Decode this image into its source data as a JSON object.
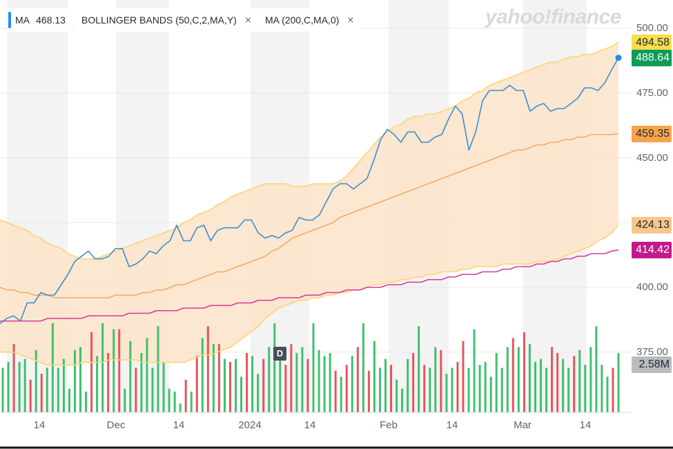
{
  "brand": "yahoo!finance",
  "indicators": [
    {
      "label": "MA",
      "value": "468.13",
      "has_close": false
    },
    {
      "label": "BOLLINGER BANDS (50,C,2,MA,Y)",
      "value": "",
      "has_close": true
    },
    {
      "label": "MA (200,C,MA,0)",
      "value": "",
      "has_close": true
    }
  ],
  "close_icon": "×",
  "chart_data": {
    "type": "line",
    "title": "",
    "y_ticks": [
      "500.00",
      "475.00",
      "450.00",
      "400.00",
      "375.00"
    ],
    "y_tick_values": [
      500,
      475,
      450,
      400,
      375
    ],
    "ylim": [
      363,
      510
    ],
    "x_ticks": [
      "14",
      "Dec",
      "14",
      "2024",
      "14",
      "Feb",
      "14",
      "Mar",
      "14"
    ],
    "x_tick_index": [
      9,
      18,
      27,
      35,
      44,
      56,
      65,
      76,
      85
    ],
    "grid": true,
    "price_series": [
      386,
      388,
      389,
      387,
      394,
      394,
      398,
      397,
      397,
      401,
      405,
      410,
      412,
      414,
      411,
      411,
      412,
      415,
      415,
      408,
      409,
      411,
      414,
      413,
      416,
      418,
      424,
      418,
      418,
      423,
      424,
      418,
      422,
      423,
      423,
      423,
      426,
      426,
      421,
      419,
      420,
      419,
      421,
      422,
      427,
      426,
      426,
      428,
      433,
      438,
      440,
      440,
      438,
      440,
      442,
      449,
      457,
      461,
      459,
      456,
      460,
      460,
      456,
      456,
      458,
      459,
      465,
      470,
      467,
      453,
      460,
      472,
      476,
      476,
      476,
      478,
      476,
      476,
      468,
      470,
      471,
      468,
      469,
      469,
      471,
      473,
      477,
      477,
      476,
      479,
      484,
      488.64
    ],
    "bollinger_upper": [
      426,
      425,
      424,
      423,
      422,
      420,
      419,
      417,
      416,
      415,
      413,
      412,
      411,
      411,
      411,
      412,
      413,
      414,
      415,
      416,
      417,
      418,
      419,
      420,
      421,
      422,
      423,
      425,
      426,
      428,
      429,
      430,
      432,
      433,
      435,
      436,
      437,
      438,
      439,
      440,
      440,
      440,
      440,
      439,
      439,
      439,
      440,
      440,
      440,
      440,
      441,
      443,
      446,
      449,
      452,
      455,
      458,
      460,
      462,
      463,
      465,
      466,
      466,
      467,
      467,
      468,
      469,
      470,
      472,
      473,
      475,
      476,
      478,
      479,
      480,
      481,
      482,
      483,
      484,
      485,
      486,
      487,
      487,
      488,
      489,
      489,
      490,
      490,
      491,
      492,
      493,
      494.58
    ],
    "bollinger_lower": [
      375,
      375,
      375,
      374,
      373,
      372,
      371,
      370,
      370,
      370,
      370,
      370,
      371,
      371,
      371,
      371,
      372,
      372,
      372,
      372,
      372,
      371,
      371,
      371,
      371,
      371,
      371,
      371,
      372,
      373,
      374,
      374,
      375,
      376,
      377,
      379,
      381,
      383,
      385,
      388,
      390,
      392,
      393,
      394,
      395,
      395,
      396,
      396,
      397,
      397,
      398,
      398,
      399,
      399,
      400,
      401,
      401,
      402,
      402,
      403,
      403,
      404,
      404,
      405,
      405,
      406,
      406,
      406,
      407,
      407,
      408,
      408,
      408,
      408,
      409,
      409,
      409,
      409,
      409,
      410,
      410,
      410,
      411,
      412,
      413,
      414,
      415,
      416,
      418,
      419,
      421,
      424.13
    ],
    "ma50": [
      400,
      399,
      399,
      398,
      398,
      397,
      397,
      397,
      396,
      396,
      396,
      396,
      396,
      396,
      396,
      396,
      396,
      397,
      397,
      397,
      397,
      398,
      398,
      399,
      399,
      400,
      401,
      401,
      402,
      403,
      404,
      405,
      406,
      406,
      407,
      408,
      409,
      410,
      411,
      412,
      414,
      415,
      417,
      419,
      420,
      421,
      422,
      423,
      424,
      425,
      427,
      428,
      429,
      430,
      431,
      432,
      433,
      434,
      435,
      436,
      437,
      438,
      439,
      440,
      441,
      442,
      443,
      444,
      445,
      446,
      447,
      448,
      449,
      450,
      451,
      452,
      453,
      453,
      454,
      455,
      455,
      456,
      456,
      457,
      457,
      458,
      458,
      459,
      459,
      459,
      459,
      459.35
    ],
    "ma200": [
      387,
      387,
      387,
      387,
      387,
      387,
      387,
      388,
      388,
      388,
      388,
      388,
      388,
      389,
      389,
      389,
      389,
      389,
      389,
      390,
      390,
      390,
      390,
      391,
      391,
      391,
      391,
      392,
      392,
      392,
      392,
      393,
      393,
      393,
      393,
      394,
      394,
      394,
      395,
      395,
      395,
      396,
      396,
      396,
      396,
      397,
      397,
      397,
      398,
      398,
      398,
      399,
      399,
      399,
      400,
      400,
      400,
      401,
      401,
      401,
      402,
      402,
      402,
      403,
      403,
      403,
      404,
      404,
      405,
      405,
      405,
      406,
      406,
      406,
      407,
      407,
      408,
      408,
      408,
      409,
      409,
      410,
      410,
      411,
      411,
      412,
      412,
      413,
      413,
      413,
      414,
      414.42
    ],
    "volume_bars": [
      [
        0.55,
        "g"
      ],
      [
        0.57,
        "g"
      ],
      [
        0.63,
        "r"
      ],
      [
        0.57,
        "g"
      ],
      [
        0.58,
        "g"
      ],
      [
        0.51,
        "r"
      ],
      [
        0.61,
        "g"
      ],
      [
        0.53,
        "r"
      ],
      [
        0.55,
        "g"
      ],
      [
        0.7,
        "g"
      ],
      [
        0.55,
        "g"
      ],
      [
        0.58,
        "g"
      ],
      [
        0.48,
        "g"
      ],
      [
        0.61,
        "g"
      ],
      [
        0.62,
        "g"
      ],
      [
        0.47,
        "g"
      ],
      [
        0.67,
        "r"
      ],
      [
        0.59,
        "g"
      ],
      [
        0.7,
        "g"
      ],
      [
        0.6,
        "r"
      ],
      [
        0.68,
        "g"
      ],
      [
        0.68,
        "r"
      ],
      [
        0.48,
        "g"
      ],
      [
        0.64,
        "g"
      ],
      [
        0.55,
        "r"
      ],
      [
        0.6,
        "g"
      ],
      [
        0.65,
        "g"
      ],
      [
        0.55,
        "g"
      ],
      [
        0.69,
        "g"
      ],
      [
        0.57,
        "g"
      ],
      [
        0.48,
        "g"
      ],
      [
        0.47,
        "g"
      ],
      [
        0.43,
        "g"
      ],
      [
        0.51,
        "r"
      ],
      [
        0.47,
        "g"
      ],
      [
        0.59,
        "r"
      ],
      [
        0.65,
        "g"
      ],
      [
        0.69,
        "r"
      ],
      [
        0.63,
        "g"
      ],
      [
        0.63,
        "r"
      ],
      [
        0.58,
        "g"
      ],
      [
        0.57,
        "r"
      ],
      [
        0.58,
        "g"
      ],
      [
        0.52,
        "g"
      ],
      [
        0.6,
        "r"
      ],
      [
        0.59,
        "g"
      ],
      [
        0.53,
        "g"
      ],
      [
        0.58,
        "r"
      ],
      [
        0.62,
        "g"
      ],
      [
        0.7,
        "g"
      ],
      [
        0.62,
        "g"
      ],
      [
        0.56,
        "r"
      ],
      [
        0.63,
        "r"
      ],
      [
        0.6,
        "g"
      ],
      [
        0.62,
        "g"
      ],
      [
        0.58,
        "r"
      ],
      [
        0.7,
        "g"
      ],
      [
        0.61,
        "g"
      ],
      [
        0.59,
        "g"
      ],
      [
        0.6,
        "g"
      ],
      [
        0.54,
        "r"
      ],
      [
        0.52,
        "g"
      ],
      [
        0.56,
        "r"
      ],
      [
        0.59,
        "g"
      ],
      [
        0.62,
        "r"
      ],
      [
        0.7,
        "g"
      ],
      [
        0.54,
        "r"
      ],
      [
        0.64,
        "g"
      ],
      [
        0.55,
        "g"
      ],
      [
        0.58,
        "g"
      ],
      [
        0.56,
        "r"
      ],
      [
        0.51,
        "g"
      ],
      [
        0.48,
        "g"
      ],
      [
        0.58,
        "g"
      ],
      [
        0.6,
        "r"
      ],
      [
        0.69,
        "g"
      ],
      [
        0.56,
        "r"
      ],
      [
        0.55,
        "g"
      ],
      [
        0.62,
        "g"
      ],
      [
        0.61,
        "r"
      ],
      [
        0.53,
        "g"
      ],
      [
        0.55,
        "g"
      ],
      [
        0.57,
        "r"
      ],
      [
        0.64,
        "r"
      ],
      [
        0.55,
        "g"
      ],
      [
        0.68,
        "g"
      ],
      [
        0.56,
        "g"
      ],
      [
        0.57,
        "g"
      ],
      [
        0.52,
        "g"
      ],
      [
        0.6,
        "g"
      ],
      [
        0.55,
        "g"
      ],
      [
        0.62,
        "g"
      ],
      [
        0.65,
        "r"
      ],
      [
        0.62,
        "g"
      ],
      [
        0.67,
        "r"
      ],
      [
        0.63,
        "g"
      ],
      [
        0.57,
        "g"
      ],
      [
        0.58,
        "g"
      ],
      [
        0.55,
        "g"
      ],
      [
        0.62,
        "r"
      ],
      [
        0.6,
        "r"
      ],
      [
        0.58,
        "g"
      ],
      [
        0.55,
        "g"
      ],
      [
        0.59,
        "r"
      ],
      [
        0.61,
        "g"
      ],
      [
        0.56,
        "g"
      ],
      [
        0.62,
        "g"
      ],
      [
        0.69,
        "g"
      ],
      [
        0.56,
        "g"
      ],
      [
        0.52,
        "g"
      ],
      [
        0.55,
        "r"
      ],
      [
        0.6,
        "g"
      ]
    ],
    "volume_ratio_note": "",
    "price_labels": {
      "bb_upper": "494.58",
      "last_price": "488.64",
      "ma50": "459.35",
      "bb_lower": "424.13",
      "ma200": "414.42",
      "volume": "2.58M"
    },
    "event_marker": "D"
  },
  "colors": {
    "price_line": "#3b8ed0",
    "band_fill": "#fbe3c9",
    "band_edge": "#fcd56e",
    "ma50": "#f7ab5e",
    "ma200": "#d6389b",
    "vol_up": "#3ec06e",
    "vol_down": "#e6545a",
    "stripe": "#f3f3f4",
    "grid": "#e7e7e9",
    "pill_upper": "#f9dd4b",
    "pill_price": "#0e9c58",
    "pill_ma50": "#f6a44b",
    "pill_lower": "#f8c789",
    "pill_ma200": "#c11b8a",
    "pill_vol": "#b8bcc0"
  }
}
